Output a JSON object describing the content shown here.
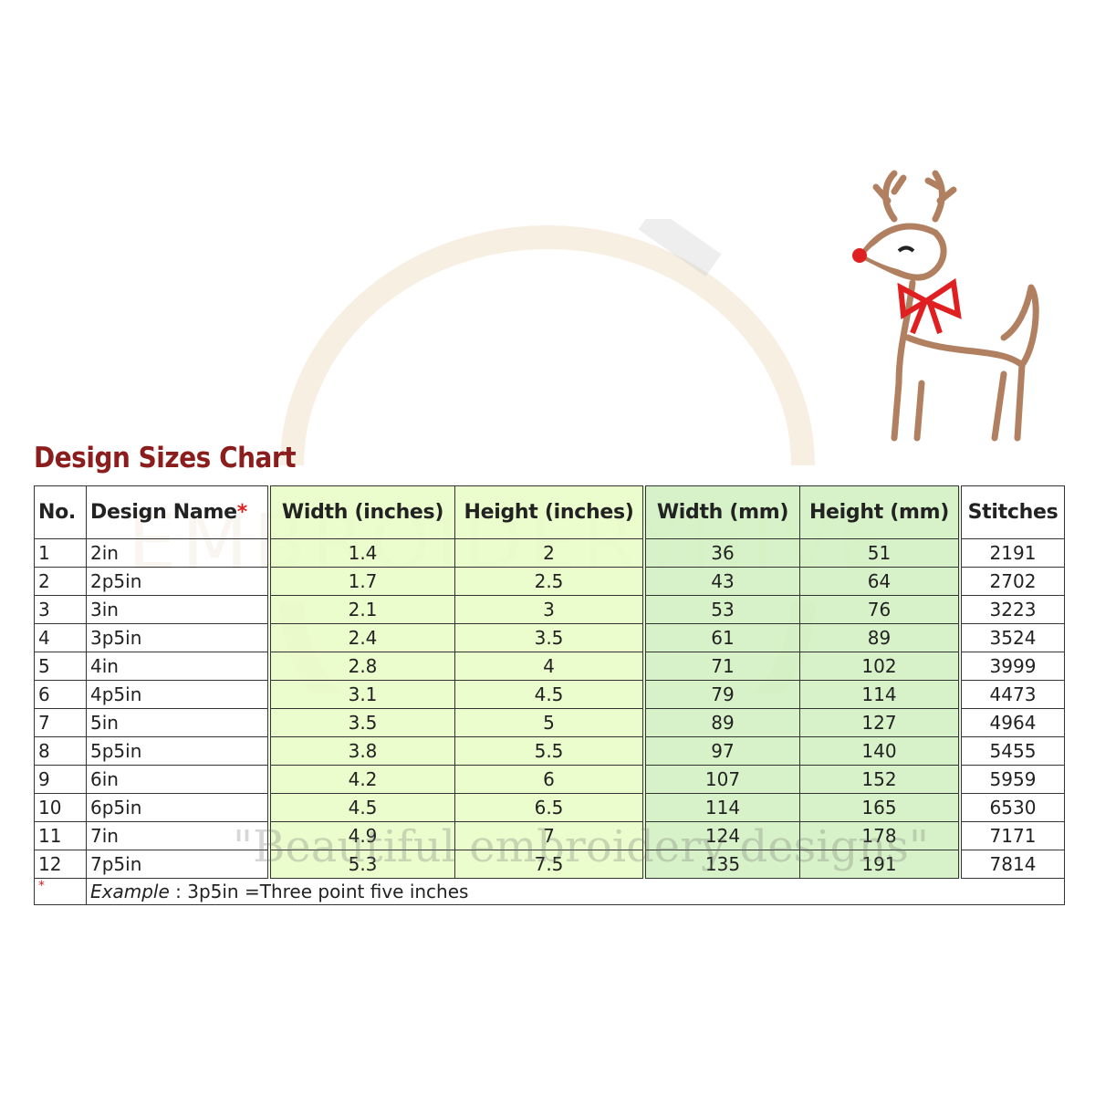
{
  "title": "Design Sizes Chart",
  "watermark": {
    "brand": "EMBROIDERYHIVE",
    "tagline": "\"Beautiful embroidery designs\""
  },
  "colors": {
    "title": "#8b1d1d",
    "inches_fill": "#e8fcc4",
    "mm_fill": "#d0f0be",
    "asterisk": "#e02020"
  },
  "table": {
    "headers": [
      "No.",
      "Design Name",
      "Width (inches)",
      "Height (inches)",
      "Width (mm)",
      "Height (mm)",
      "Stitches"
    ],
    "header_asterisk": "*",
    "rows": [
      [
        "1",
        "2in",
        "1.4",
        "2",
        "36",
        "51",
        "2191"
      ],
      [
        "2",
        "2p5in",
        "1.7",
        "2.5",
        "43",
        "64",
        "2702"
      ],
      [
        "3",
        "3in",
        "2.1",
        "3",
        "53",
        "76",
        "3223"
      ],
      [
        "4",
        "3p5in",
        "2.4",
        "3.5",
        "61",
        "89",
        "3524"
      ],
      [
        "5",
        "4in",
        "2.8",
        "4",
        "71",
        "102",
        "3999"
      ],
      [
        "6",
        "4p5in",
        "3.1",
        "4.5",
        "79",
        "114",
        "4473"
      ],
      [
        "7",
        "5in",
        "3.5",
        "5",
        "89",
        "127",
        "4964"
      ],
      [
        "8",
        "5p5in",
        "3.8",
        "5.5",
        "97",
        "140",
        "5455"
      ],
      [
        "9",
        "6in",
        "4.2",
        "6",
        "107",
        "152",
        "5959"
      ],
      [
        "10",
        "6p5in",
        "4.5",
        "6.5",
        "114",
        "165",
        "6530"
      ],
      [
        "11",
        "7in",
        "4.9",
        "7",
        "124",
        "178",
        "7171"
      ],
      [
        "12",
        "7p5in",
        "5.3",
        "7.5",
        "135",
        "191",
        "7814"
      ]
    ],
    "footnote": {
      "marker": "*",
      "label": "Example",
      "text": " : 3p5in =Three point five inches"
    }
  },
  "image": {
    "icon": "reindeer-with-bow-embroidery"
  }
}
